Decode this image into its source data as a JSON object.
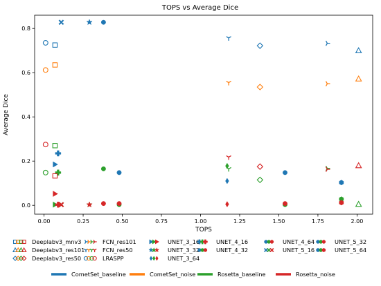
{
  "chart_data": {
    "type": "scatter",
    "title": "TOPS vs Average Dice",
    "xlabel": "TOPS",
    "ylabel": "Average Dice",
    "xlim": [
      -0.06,
      2.1
    ],
    "ylim": [
      -0.04,
      0.86
    ],
    "xticks": [
      0.0,
      0.25,
      0.5,
      0.75,
      1.0,
      1.25,
      1.5,
      1.75,
      2.0
    ],
    "xtick_labels": [
      "0.00",
      "0.25",
      "0.50",
      "0.75",
      "1.00",
      "1.25",
      "1.50",
      "1.75",
      "2.00"
    ],
    "yticks": [
      0.0,
      0.2,
      0.4,
      0.6,
      0.8
    ],
    "ytick_labels": [
      "0.0",
      "0.2",
      "0.4",
      "0.6",
      "0.8"
    ],
    "grid": false,
    "colors": {
      "CometSet_baseline": "#1f77b4",
      "CometSet_noise": "#ff7f0e",
      "Rosetta_baseline": "#2ca02c",
      "Rosetta_noise": "#d62728"
    },
    "models": [
      {
        "name": "Deeplabv3_mnv3",
        "marker": "square-open"
      },
      {
        "name": "Deeplabv3_res101",
        "marker": "triangle-up-open"
      },
      {
        "name": "Deeplabv3_res50",
        "marker": "diamond-open"
      },
      {
        "name": "FCN_res101",
        "marker": "tri-right"
      },
      {
        "name": "FCN_res50",
        "marker": "tri-down"
      },
      {
        "name": "LRASPP",
        "marker": "circle-open"
      },
      {
        "name": "UNET_3_16",
        "marker": "triangle-right"
      },
      {
        "name": "UNET_3_32",
        "marker": "star"
      },
      {
        "name": "UNET_3_64",
        "marker": "thin-diamond"
      },
      {
        "name": "UNET_4_16",
        "marker": "plus-filled"
      },
      {
        "name": "UNET_4_32",
        "marker": "circle"
      },
      {
        "name": "UNET_4_64",
        "marker": "circle"
      },
      {
        "name": "UNET_5_16",
        "marker": "x-filled"
      },
      {
        "name": "UNET_5_32",
        "marker": "circle"
      },
      {
        "name": "UNET_5_64",
        "marker": "hexagon"
      }
    ],
    "series": [
      {
        "name": "CometSet_baseline",
        "points": [
          {
            "model": "Deeplabv3_mnv3",
            "x": 0.07,
            "y": 0.725
          },
          {
            "model": "Deeplabv3_res101",
            "x": 2.01,
            "y": 0.7
          },
          {
            "model": "Deeplabv3_res50",
            "x": 1.38,
            "y": 0.722
          },
          {
            "model": "FCN_res101",
            "x": 1.81,
            "y": 0.733
          },
          {
            "model": "FCN_res50",
            "x": 1.18,
            "y": 0.757
          },
          {
            "model": "LRASPP",
            "x": 0.01,
            "y": 0.735
          },
          {
            "model": "UNET_3_16",
            "x": 0.07,
            "y": 0.185
          },
          {
            "model": "UNET_3_32",
            "x": 0.29,
            "y": 0.828
          },
          {
            "model": "UNET_3_64",
            "x": 1.17,
            "y": 0.11
          },
          {
            "model": "UNET_4_16",
            "x": 0.09,
            "y": 0.235
          },
          {
            "model": "UNET_4_32",
            "x": 0.38,
            "y": 0.828
          },
          {
            "model": "UNET_4_64",
            "x": 1.54,
            "y": 0.148
          },
          {
            "model": "UNET_5_16",
            "x": 0.11,
            "y": 0.828
          },
          {
            "model": "UNET_5_32",
            "x": 0.48,
            "y": 0.148
          },
          {
            "model": "UNET_5_64",
            "x": 1.9,
            "y": 0.103
          }
        ]
      },
      {
        "name": "CometSet_noise",
        "points": [
          {
            "model": "Deeplabv3_mnv3",
            "x": 0.07,
            "y": 0.635
          },
          {
            "model": "Deeplabv3_res101",
            "x": 2.01,
            "y": 0.572
          },
          {
            "model": "Deeplabv3_res50",
            "x": 1.38,
            "y": 0.535
          },
          {
            "model": "FCN_res101",
            "x": 1.81,
            "y": 0.55
          },
          {
            "model": "FCN_res50",
            "x": 1.18,
            "y": 0.555
          },
          {
            "model": "LRASPP",
            "x": 0.01,
            "y": 0.612
          }
        ]
      },
      {
        "name": "Rosetta_baseline",
        "points": [
          {
            "model": "Deeplabv3_mnv3",
            "x": 0.07,
            "y": 0.27
          },
          {
            "model": "Deeplabv3_res101",
            "x": 2.01,
            "y": 0.005
          },
          {
            "model": "Deeplabv3_res50",
            "x": 1.38,
            "y": 0.115
          },
          {
            "model": "FCN_res101",
            "x": 1.81,
            "y": 0.167
          },
          {
            "model": "FCN_res50",
            "x": 1.18,
            "y": 0.165
          },
          {
            "model": "LRASPP",
            "x": 0.01,
            "y": 0.148
          },
          {
            "model": "UNET_3_16",
            "x": 0.07,
            "y": 0.003
          },
          {
            "model": "UNET_3_32",
            "x": 0.29,
            "y": 0.003
          },
          {
            "model": "UNET_3_64",
            "x": 1.17,
            "y": 0.178
          },
          {
            "model": "UNET_4_16",
            "x": 0.09,
            "y": 0.148
          },
          {
            "model": "UNET_4_32",
            "x": 0.38,
            "y": 0.165
          },
          {
            "model": "UNET_4_64",
            "x": 1.54,
            "y": 0.003
          },
          {
            "model": "UNET_5_16",
            "x": 0.11,
            "y": 0.003
          },
          {
            "model": "UNET_5_32",
            "x": 0.48,
            "y": 0.003
          },
          {
            "model": "UNET_5_64",
            "x": 1.9,
            "y": 0.028
          }
        ]
      },
      {
        "name": "Rosetta_noise",
        "points": [
          {
            "model": "Deeplabv3_mnv3",
            "x": 0.07,
            "y": 0.133
          },
          {
            "model": "Deeplabv3_res101",
            "x": 2.01,
            "y": 0.18
          },
          {
            "model": "Deeplabv3_res50",
            "x": 1.38,
            "y": 0.175
          },
          {
            "model": "FCN_res101",
            "x": 1.81,
            "y": 0.163
          },
          {
            "model": "FCN_res50",
            "x": 1.18,
            "y": 0.218
          },
          {
            "model": "LRASPP",
            "x": 0.01,
            "y": 0.275
          },
          {
            "model": "UNET_3_16",
            "x": 0.07,
            "y": 0.052
          },
          {
            "model": "UNET_3_32",
            "x": 0.29,
            "y": 0.003
          },
          {
            "model": "UNET_3_64",
            "x": 1.17,
            "y": 0.005
          },
          {
            "model": "UNET_4_16",
            "x": 0.09,
            "y": 0.003
          },
          {
            "model": "UNET_4_32",
            "x": 0.38,
            "y": 0.008
          },
          {
            "model": "UNET_4_64",
            "x": 1.54,
            "y": 0.008
          },
          {
            "model": "UNET_5_16",
            "x": 0.11,
            "y": 0.003
          },
          {
            "model": "UNET_5_32",
            "x": 0.48,
            "y": 0.008
          },
          {
            "model": "UNET_5_64",
            "x": 1.9,
            "y": 0.012
          }
        ]
      }
    ]
  }
}
